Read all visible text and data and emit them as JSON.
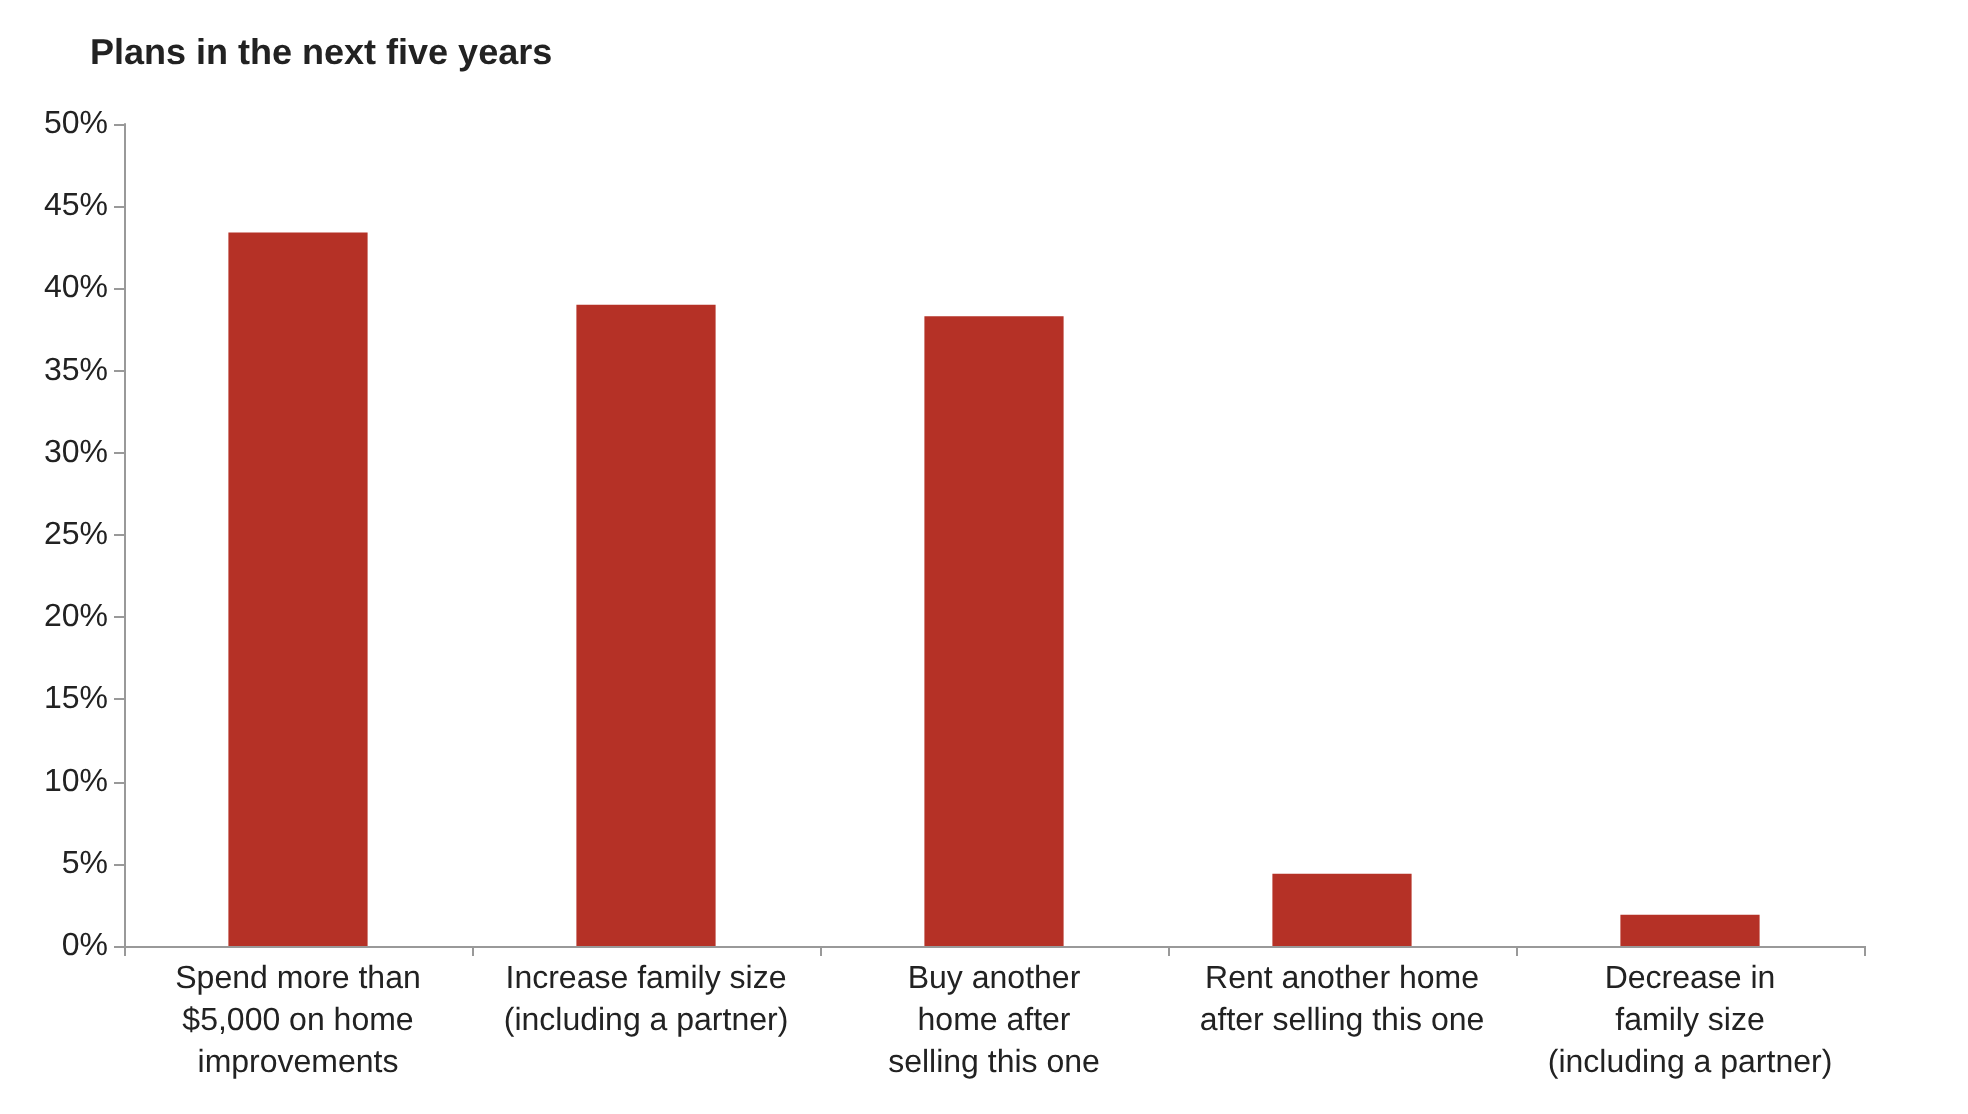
{
  "chart_data": {
    "type": "bar",
    "title": "Plans in the next five years",
    "categories": [
      "Spend more than\n$5,000 on home\nimprovements",
      "Increase family size\n(including a partner)",
      "Buy another\nhome after\nselling this one",
      "Rent another home\nafter selling this one",
      "Decrease in\nfamily size\n(including a partner)"
    ],
    "values": [
      43.4,
      39.0,
      38.3,
      4.4,
      1.9
    ],
    "color": "#b53126",
    "ylim": [
      0,
      50
    ],
    "yticks": [
      {
        "value": 0,
        "label": "0%"
      },
      {
        "value": 5,
        "label": "5%"
      },
      {
        "value": 10,
        "label": "10%"
      },
      {
        "value": 15,
        "label": "15%"
      },
      {
        "value": 20,
        "label": "20%"
      },
      {
        "value": 25,
        "label": "25%"
      },
      {
        "value": 30,
        "label": "30%"
      },
      {
        "value": 35,
        "label": "35%"
      },
      {
        "value": 40,
        "label": "40%"
      },
      {
        "value": 45,
        "label": "45%"
      },
      {
        "value": 50,
        "label": "50%"
      }
    ],
    "grid": false
  }
}
